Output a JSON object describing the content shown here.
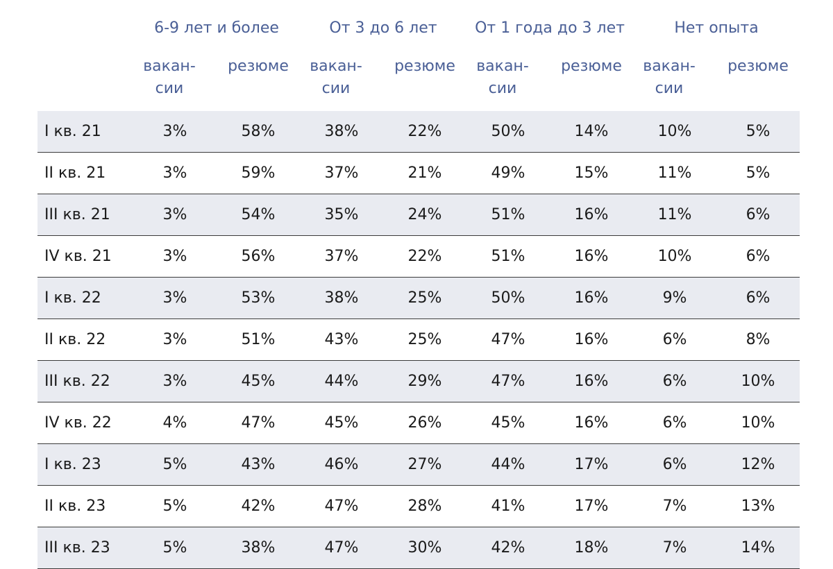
{
  "groups": [
    "6-9 лет и более",
    "От 3 до 6 лет",
    "От 1 года до 3 лет",
    "Нет опыта"
  ],
  "subheaders": {
    "vacancies": "вакан-\nсии",
    "resumes": "резюме"
  },
  "rows": [
    {
      "label": "I кв. 21",
      "values": [
        "3%",
        "58%",
        "38%",
        "22%",
        "50%",
        "14%",
        "10%",
        "5%"
      ]
    },
    {
      "label": "II кв. 21",
      "values": [
        "3%",
        "59%",
        "37%",
        "21%",
        "49%",
        "15%",
        "11%",
        "5%"
      ]
    },
    {
      "label": "III кв. 21",
      "values": [
        "3%",
        "54%",
        "35%",
        "24%",
        "51%",
        "16%",
        "11%",
        "6%"
      ]
    },
    {
      "label": "IV кв. 21",
      "values": [
        "3%",
        "56%",
        "37%",
        "22%",
        "51%",
        "16%",
        "10%",
        "6%"
      ]
    },
    {
      "label": "I кв. 22",
      "values": [
        "3%",
        "53%",
        "38%",
        "25%",
        "50%",
        "16%",
        "9%",
        "6%"
      ]
    },
    {
      "label": "II кв. 22",
      "values": [
        "3%",
        "51%",
        "43%",
        "25%",
        "47%",
        "16%",
        "6%",
        "8%"
      ]
    },
    {
      "label": "III кв. 22",
      "values": [
        "3%",
        "45%",
        "44%",
        "29%",
        "47%",
        "16%",
        "6%",
        "10%"
      ]
    },
    {
      "label": "IV кв. 22",
      "values": [
        "4%",
        "47%",
        "45%",
        "26%",
        "45%",
        "16%",
        "6%",
        "10%"
      ]
    },
    {
      "label": "I кв. 23",
      "values": [
        "5%",
        "43%",
        "46%",
        "27%",
        "44%",
        "17%",
        "6%",
        "12%"
      ]
    },
    {
      "label": "II кв. 23",
      "values": [
        "5%",
        "42%",
        "47%",
        "28%",
        "41%",
        "17%",
        "7%",
        "13%"
      ]
    },
    {
      "label": "III кв. 23",
      "values": [
        "5%",
        "38%",
        "47%",
        "30%",
        "42%",
        "18%",
        "7%",
        "14%"
      ]
    }
  ]
}
